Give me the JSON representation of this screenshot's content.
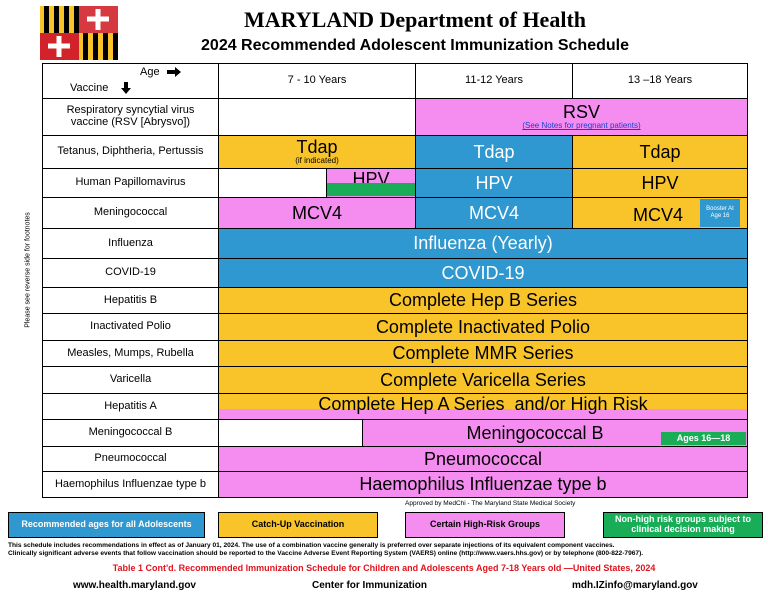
{
  "header": {
    "title": "MARYLAND Department of Health",
    "subtitle": "2024 Recommended Adolescent Immunization Schedule"
  },
  "table": {
    "age_label": "Age",
    "vaccine_label": "Vaccine",
    "side_note": "Please see reverse side for footnotes",
    "columns": [
      "7 - 10 Years",
      "11-12 Years",
      "13 –18 Years"
    ],
    "rows": [
      {
        "vaccine": "Respiratory syncytial virus vaccine (RSV [Abrysvo])",
        "cells": [
          "RSV"
        ],
        "note": "(See Notes for pregnant patients)"
      },
      {
        "vaccine": "Tetanus, Diphtheria, Pertussis",
        "cells": [
          "Tdap",
          "Tdap",
          "Tdap"
        ],
        "note": "(if indicated)"
      },
      {
        "vaccine": "Human Papillomavirus",
        "cells": [
          "HPV",
          "HPV",
          "HPV"
        ]
      },
      {
        "vaccine": "Meningococcal",
        "cells": [
          "MCV4",
          "MCV4",
          "MCV4"
        ],
        "note": "Booster At Age 16"
      },
      {
        "vaccine": "Influenza",
        "cells": [
          "Influenza (Yearly)"
        ]
      },
      {
        "vaccine": "COVID-19",
        "cells": [
          "COVID-19"
        ]
      },
      {
        "vaccine": "Hepatitis B",
        "cells": [
          "Complete Hep B Series"
        ]
      },
      {
        "vaccine": "Inactivated Polio",
        "cells": [
          "Complete Inactivated Polio"
        ]
      },
      {
        "vaccine": "Measles, Mumps, Rubella",
        "cells": [
          "Complete MMR Series"
        ]
      },
      {
        "vaccine": "Varicella",
        "cells": [
          "Complete Varicella Series"
        ]
      },
      {
        "vaccine": "Hepatitis A",
        "cells": [
          "Complete Hep A Series  and/or High Risk"
        ]
      },
      {
        "vaccine": "Meningococcal B",
        "cells": [
          "Meningococcal B"
        ],
        "note": "Ages 16—18"
      },
      {
        "vaccine": "Pneumococcal",
        "cells": [
          "Pneumococcal"
        ]
      },
      {
        "vaccine": "Haemophilus Influenzae type b",
        "cells": [
          "Haemophilus Influenzae type b"
        ]
      }
    ]
  },
  "approval": "Approved by MedChi - The Maryland State Medical Society",
  "legend": [
    "Recommended ages for all Adolescents",
    "Catch-Up Vaccination",
    "Certain High-Risk Groups",
    "Non-high risk groups subject to clinical decision making"
  ],
  "footnotes": [
    "This schedule includes recommendations in effect as of January 01, 2024. The use of a combination vaccine generally is preferred over separate injections of its equivalent component vaccines.",
    "Clinically significant adverse events that follow vaccination should be reported to the Vaccine Adverse Event Reporting System (VAERS) online (http://www.vaers.hhs.gov) or by telephone (800-822-7967)."
  ],
  "caption": "Table 1 Cont'd. Recommended Immunization Schedule for Children and Adolescents Aged 7-18 Years old —United States, 2024",
  "footer": [
    "www.health.maryland.gov",
    "Center for Immunization",
    "mdh.IZinfo@maryland.gov"
  ]
}
